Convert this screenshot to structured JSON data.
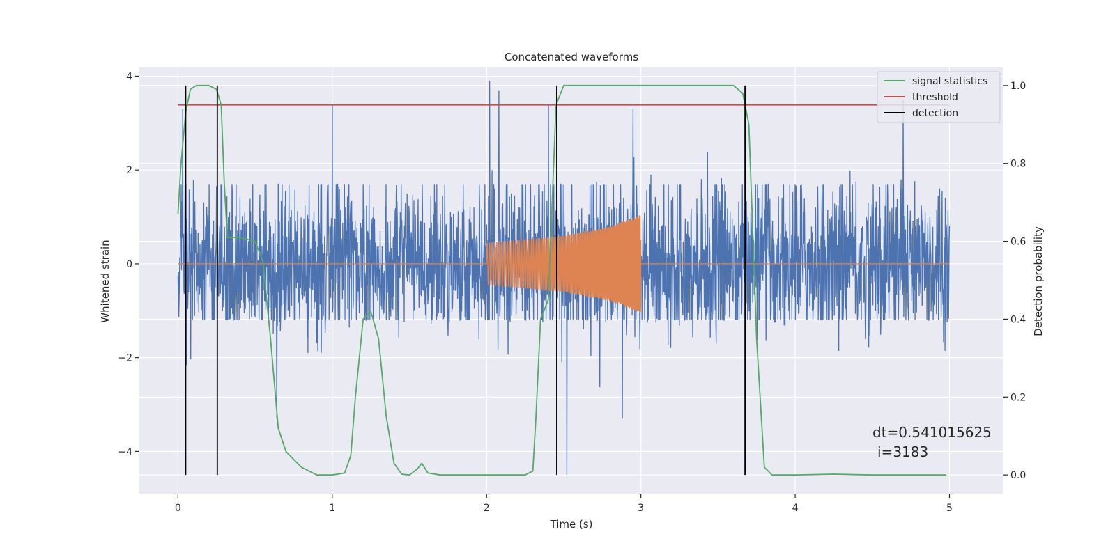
{
  "chart_data": {
    "type": "line",
    "title": "Concatenated waveforms",
    "xlabel": "Time (s)",
    "ylabel": "Whitened strain",
    "y2label": "Detection probability",
    "xlim": [
      -0.25,
      5.35
    ],
    "ylim": [
      -4.9,
      4.2
    ],
    "y2lim": [
      -0.048,
      1.048
    ],
    "xticks": [
      0,
      1,
      2,
      3,
      4,
      5
    ],
    "yticks": [
      -4,
      -2,
      0,
      2,
      4
    ],
    "y2ticks": [
      0.0,
      0.2,
      0.4,
      0.6,
      0.8,
      1.0
    ],
    "xtick_labels": [
      "0",
      "1",
      "2",
      "3",
      "4",
      "5"
    ],
    "ytick_labels": [
      "−4",
      "−2",
      "0",
      "2",
      "4"
    ],
    "y2tick_labels": [
      "0.0",
      "0.2",
      "0.4",
      "0.6",
      "0.8",
      "1.0"
    ],
    "grid": true,
    "legend_position": "top-right",
    "annotation_line1": "dt=0.541015625",
    "annotation_line2": "i=3183",
    "series": [
      {
        "name": "",
        "axis": "left",
        "color": "#4c72b0",
        "kind": "whitened noise strain",
        "x_range": [
          0,
          5
        ],
        "typical_range": [
          -1.2,
          1.7
        ],
        "max_abs": 4.5,
        "spikes": [
          [
            0.03,
            3.3
          ],
          [
            1.0,
            3.4
          ],
          [
            2.02,
            3.9
          ],
          [
            2.08,
            3.7
          ],
          [
            2.4,
            3.4
          ],
          [
            2.52,
            -4.5
          ],
          [
            2.95,
            3.3
          ],
          [
            4.7,
            3.5
          ],
          [
            0.64,
            -3.3
          ],
          [
            2.88,
            -3.3
          ]
        ]
      },
      {
        "name": "",
        "axis": "left",
        "color": "#dd8452",
        "kind": "injected chirp",
        "x": [
          0,
          2.0,
          2.0,
          2.5,
          2.8,
          3.0,
          3.0,
          5.0
        ],
        "envelope": [
          0,
          0,
          0.45,
          0.6,
          0.8,
          1.05,
          0,
          0
        ]
      },
      {
        "name": "signal statistics",
        "axis": "right",
        "color": "#55a868",
        "x": [
          0.0,
          0.02,
          0.05,
          0.08,
          0.12,
          0.2,
          0.25,
          0.28,
          0.3,
          0.32,
          0.35,
          0.4,
          0.5,
          0.55,
          0.6,
          0.65,
          0.7,
          0.8,
          0.9,
          1.0,
          1.08,
          1.12,
          1.15,
          1.2,
          1.25,
          1.3,
          1.35,
          1.4,
          1.45,
          1.5,
          1.55,
          1.58,
          1.62,
          1.7,
          2.0,
          2.25,
          2.3,
          2.32,
          2.35,
          2.4,
          2.45,
          2.5,
          2.6,
          3.0,
          3.6,
          3.66,
          3.7,
          3.75,
          3.8,
          3.85,
          4.0,
          4.25,
          4.5,
          4.98
        ],
        "values": [
          0.67,
          0.8,
          0.93,
          0.99,
          1.0,
          1.0,
          0.99,
          0.95,
          0.75,
          0.61,
          0.61,
          0.61,
          0.6,
          0.55,
          0.35,
          0.12,
          0.06,
          0.02,
          0.0,
          0.0,
          0.005,
          0.05,
          0.2,
          0.4,
          0.42,
          0.35,
          0.15,
          0.03,
          0.002,
          0.0,
          0.015,
          0.03,
          0.005,
          0.0,
          0.0,
          0.0,
          0.01,
          0.15,
          0.4,
          0.45,
          0.95,
          1.0,
          1.0,
          1.0,
          1.0,
          0.98,
          0.9,
          0.35,
          0.02,
          0.0,
          0.0,
          0.002,
          0.0,
          0.0
        ]
      },
      {
        "name": "threshold",
        "axis": "right",
        "color": "#c44e52",
        "x": [
          0,
          5
        ],
        "values": [
          0.95,
          0.95
        ]
      },
      {
        "name": "detection",
        "axis": "right",
        "color": "#000000",
        "kind": "vertical lines",
        "x": [
          0.05,
          0.255,
          2.455,
          3.675
        ],
        "values_top": [
          1.0,
          1.0,
          1.0,
          1.0
        ],
        "values_bottom": [
          0.0,
          0.0,
          0.0,
          0.0
        ]
      }
    ]
  },
  "colors": {
    "figure_background": "#ffffff",
    "axes_background": "#eaeaf2",
    "grid": "#ffffff",
    "text": "#262626"
  }
}
